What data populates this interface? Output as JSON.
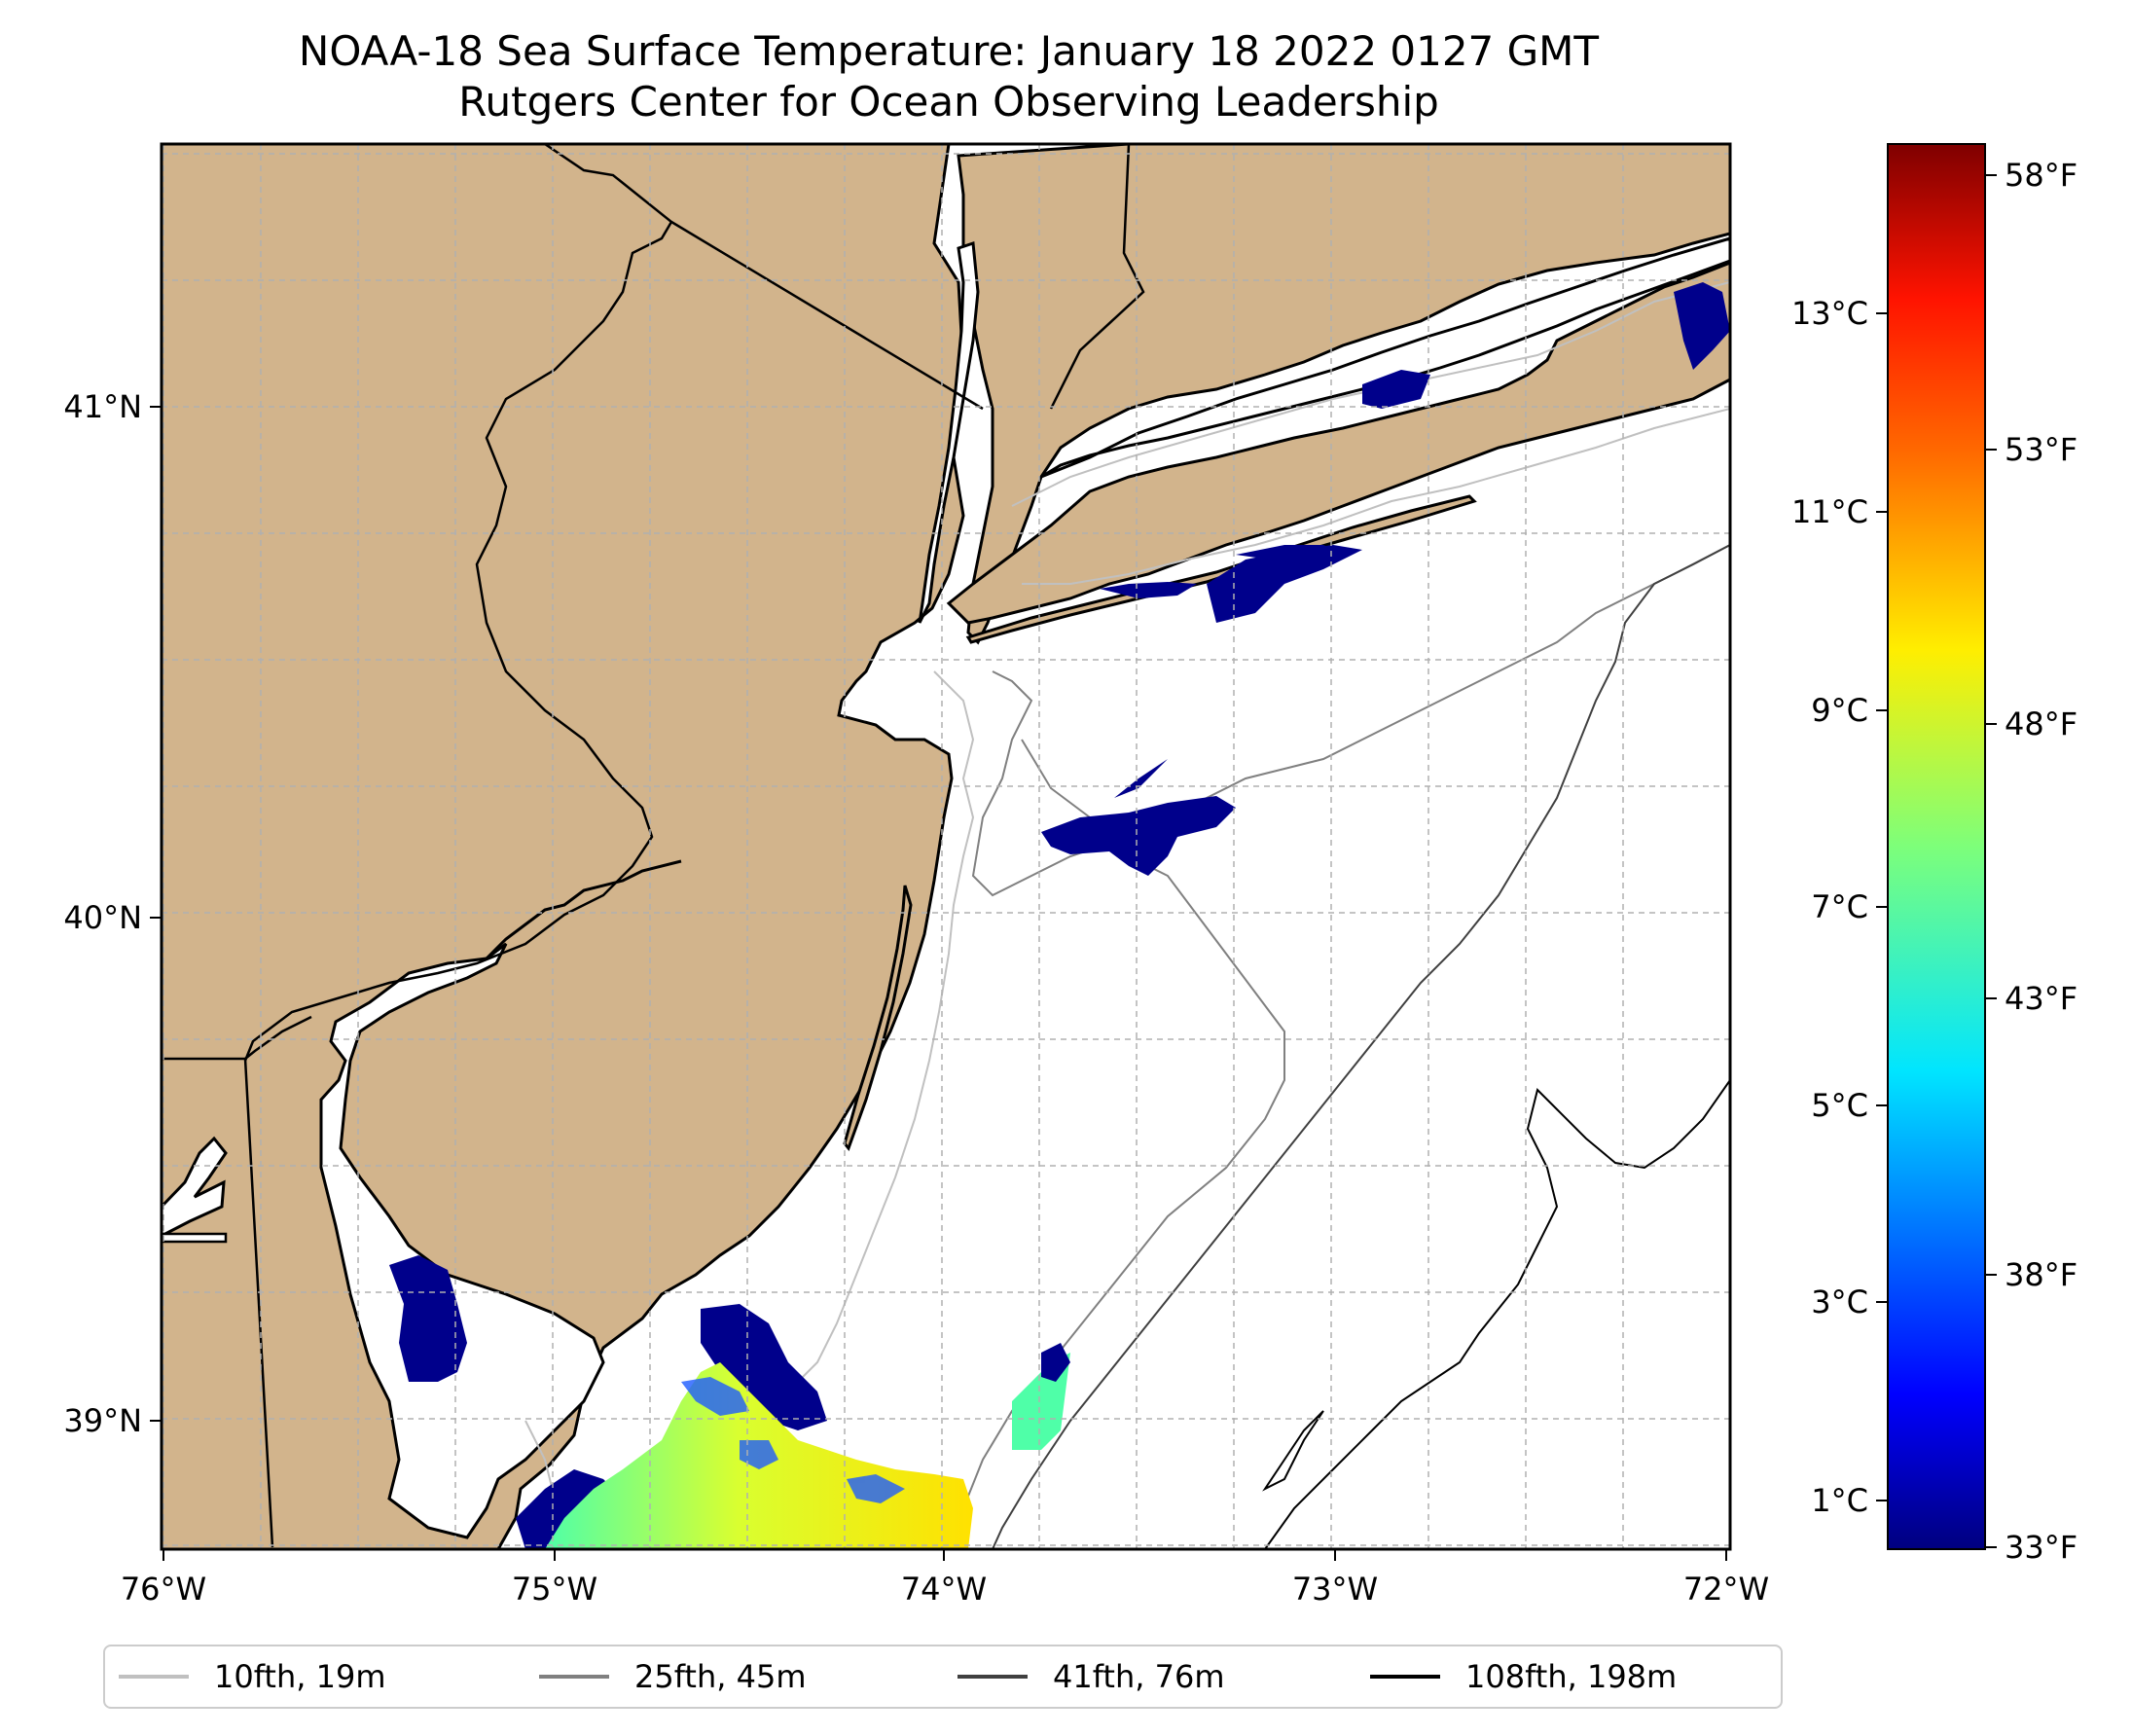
{
  "title": {
    "line1": "NOAA-18 Sea Surface Temperature: January 18 2022 0127 GMT",
    "line2": "Rutgers Center for Ocean Observing Leadership"
  },
  "axes": {
    "lon_ticks": [
      "76°W",
      "75°W",
      "74°W",
      "73°W",
      "72°W"
    ],
    "lat_ticks": [
      "41°N",
      "40°N",
      "39°N"
    ]
  },
  "colorbar": {
    "celsius_ticks": [
      "13°C",
      "11°C",
      "9°C",
      "7°C",
      "5°C",
      "3°C",
      "1°C"
    ],
    "fahrenheit_ticks": [
      "58°F",
      "53°F",
      "48°F",
      "43°F",
      "38°F",
      "33°F"
    ],
    "colormap": "jet"
  },
  "legend": {
    "items": [
      {
        "label": "10fth, 19m",
        "color": "#c0c0c0"
      },
      {
        "label": "25fth, 45m",
        "color": "#808080"
      },
      {
        "label": "41fth, 76m",
        "color": "#404040"
      },
      {
        "label": "108fth, 198m",
        "color": "#000000"
      }
    ]
  },
  "colors": {
    "land": "#d2b48c",
    "ocean": "#ffffff",
    "cold_sst": "#00008b",
    "grid": "#b0b0b0"
  }
}
